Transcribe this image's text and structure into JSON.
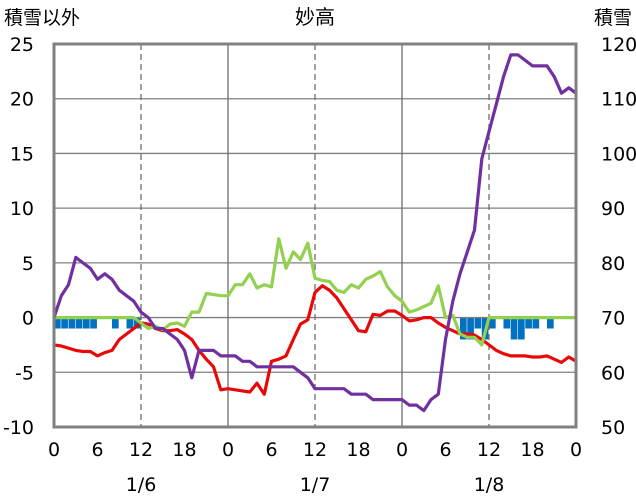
{
  "chart_data": {
    "type": "line",
    "title": "妙高",
    "left_axis_label": "積雪以外",
    "right_axis_label": "積雪",
    "left_ylim": [
      -10,
      25
    ],
    "right_ylim": [
      50,
      120
    ],
    "left_yticks": [
      -10,
      -5,
      0,
      5,
      10,
      15,
      20,
      25
    ],
    "right_yticks": [
      50,
      60,
      70,
      80,
      90,
      100,
      110,
      120
    ],
    "xlim": [
      0,
      72
    ],
    "x_tick_labels": [
      "0",
      "6",
      "12",
      "18",
      "0",
      "6",
      "12",
      "18",
      "0",
      "6",
      "12",
      "18",
      "0"
    ],
    "date_labels": [
      "1/6",
      "1/7",
      "1/8"
    ],
    "grid": "dashed vertical lines at 12h, solid at day boundaries",
    "series": [
      {
        "color": "#e8080a",
        "axis": "left",
        "x": [
          0,
          1,
          2,
          3,
          4,
          5,
          6,
          7,
          8,
          9,
          10,
          11,
          12,
          13,
          14,
          15,
          16,
          17,
          18,
          19,
          20,
          21,
          22,
          23,
          24,
          25,
          26,
          27,
          28,
          29,
          30,
          31,
          32,
          33,
          34,
          35,
          36,
          37,
          38,
          39,
          40,
          41,
          42,
          43,
          44,
          45,
          46,
          47,
          48,
          49,
          50,
          51,
          52,
          53,
          54,
          55,
          56,
          57,
          58,
          59,
          60,
          61,
          62,
          63,
          64,
          65,
          66,
          67,
          68,
          69,
          70,
          71,
          72
        ],
        "values": [
          -2.5,
          -2.6,
          -2.8,
          -3.0,
          -3.1,
          -3.1,
          -3.5,
          -3.2,
          -3.0,
          -2.0,
          -1.5,
          -1.0,
          -0.5,
          -0.6,
          -1.0,
          -1.2,
          -1.2,
          -1.1,
          -1.5,
          -2.0,
          -3.0,
          -3.8,
          -4.5,
          -6.6,
          -6.5,
          -6.6,
          -6.7,
          -6.8,
          -6.0,
          -7.0,
          -4.0,
          -3.8,
          -3.5,
          -2.0,
          -0.6,
          -0.2,
          2.3,
          2.9,
          2.5,
          1.8,
          0.8,
          -0.2,
          -1.2,
          -1.3,
          0.3,
          0.2,
          0.6,
          0.6,
          0.2,
          -0.3,
          -0.2,
          0.0,
          0.0,
          -0.5,
          -0.9,
          -1.2,
          -1.5,
          -1.5,
          -1.6,
          -2.0,
          -2.5,
          -3.0,
          -3.3,
          -3.5,
          -3.5,
          -3.5,
          -3.6,
          -3.6,
          -3.5,
          -3.8,
          -4.1,
          -3.6,
          -4.0
        ]
      },
      {
        "color": "#92d050",
        "axis": "left",
        "x": [
          0,
          1,
          2,
          3,
          4,
          5,
          6,
          7,
          8,
          9,
          10,
          11,
          12,
          13,
          14,
          15,
          16,
          17,
          18,
          19,
          20,
          21,
          22,
          23,
          24,
          25,
          26,
          27,
          28,
          29,
          30,
          31,
          32,
          33,
          34,
          35,
          36,
          37,
          38,
          39,
          40,
          41,
          42,
          43,
          44,
          45,
          46,
          47,
          48,
          49,
          50,
          51,
          52,
          53,
          54,
          55,
          56,
          57,
          58,
          59,
          60,
          61,
          62,
          63,
          64,
          65,
          66,
          67,
          68,
          69,
          70,
          71,
          72
        ],
        "values": [
          0,
          0,
          0,
          0,
          0,
          0,
          0,
          0,
          0,
          0,
          0,
          0,
          -0.5,
          -1.0,
          -0.8,
          -1.1,
          -0.6,
          -0.5,
          -0.8,
          0.5,
          0.5,
          2.2,
          2.1,
          2.0,
          2.0,
          3.0,
          3.0,
          4.0,
          2.7,
          3.0,
          2.8,
          7.2,
          4.5,
          6.0,
          5.3,
          6.8,
          3.6,
          3.4,
          3.3,
          2.5,
          2.3,
          3.0,
          2.7,
          3.5,
          3.8,
          4.2,
          2.8,
          2.0,
          1.5,
          0.5,
          0.7,
          1.0,
          1.3,
          2.9,
          0,
          0.2,
          -1.5,
          -1.8,
          -1.8,
          -2.5,
          0,
          0,
          0,
          0,
          0,
          0,
          0,
          0,
          0,
          0,
          0,
          0,
          0
        ]
      },
      {
        "color": "#7030a0",
        "axis": "right",
        "x": [
          0,
          1,
          2,
          3,
          4,
          5,
          6,
          7,
          8,
          9,
          10,
          11,
          12,
          13,
          14,
          15,
          16,
          17,
          18,
          19,
          20,
          21,
          22,
          23,
          24,
          25,
          26,
          27,
          28,
          29,
          30,
          31,
          32,
          33,
          34,
          35,
          36,
          37,
          38,
          39,
          40,
          41,
          42,
          43,
          44,
          45,
          46,
          47,
          48,
          49,
          50,
          51,
          52,
          53,
          54,
          55,
          56,
          57,
          58,
          59,
          60,
          61,
          62,
          63,
          64,
          65,
          66,
          67,
          68,
          69,
          70,
          71,
          72
        ],
        "values": [
          70,
          74,
          76,
          81,
          80,
          79,
          77,
          78,
          77,
          75,
          74,
          73,
          71,
          70,
          68,
          68,
          67,
          66,
          64,
          59,
          64,
          64,
          64,
          63,
          63,
          63,
          62,
          62,
          61,
          61,
          61,
          61,
          61,
          61,
          60,
          59,
          57,
          57,
          57,
          57,
          57,
          56,
          56,
          56,
          55,
          55,
          55,
          55,
          55,
          54,
          54,
          53,
          55,
          56,
          66,
          73,
          78,
          82,
          86,
          99,
          104,
          109,
          114,
          118,
          118,
          117,
          116,
          116,
          116,
          114,
          111,
          112,
          111
        ]
      },
      {
        "color": "#0070c0",
        "axis": "left",
        "kind": "bars",
        "x": [
          0,
          1,
          2,
          3,
          4,
          5,
          6,
          7,
          8,
          9,
          10,
          11,
          12,
          13,
          14,
          15,
          16,
          17,
          18,
          19,
          20,
          21,
          22,
          23,
          24,
          25,
          26,
          27,
          28,
          29,
          30,
          31,
          32,
          33,
          34,
          35,
          36,
          37,
          38,
          39,
          40,
          41,
          42,
          43,
          44,
          45,
          46,
          47,
          48,
          49,
          50,
          51,
          52,
          53,
          54,
          55,
          56,
          57,
          58,
          59,
          60,
          61,
          62,
          63,
          64,
          65,
          66,
          67,
          68,
          69,
          70,
          71,
          72
        ],
        "values": [
          -1,
          -1,
          -1,
          -1,
          -1,
          -1,
          0,
          0,
          -1,
          0,
          -1,
          -1,
          0,
          0,
          0,
          0,
          0,
          0,
          0,
          0,
          0,
          0,
          0,
          0,
          0,
          0,
          0,
          0,
          0,
          0,
          0,
          0,
          0,
          0,
          0,
          0,
          0,
          0,
          0,
          0,
          0,
          0,
          0,
          0,
          0,
          0,
          0,
          0,
          0,
          0,
          0,
          0,
          0,
          0,
          0,
          0,
          -2,
          -2,
          -1,
          -2,
          -1,
          0,
          -1,
          -2,
          -2,
          -1,
          -1,
          0,
          -1,
          0,
          0,
          0,
          0
        ]
      }
    ]
  }
}
